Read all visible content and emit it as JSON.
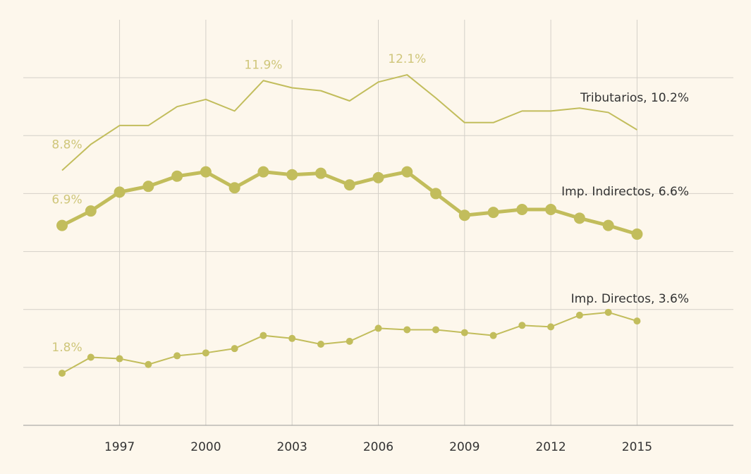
{
  "chart_data": {
    "type": "line",
    "x": [
      1995,
      1996,
      1997,
      1998,
      1999,
      2000,
      2001,
      2002,
      2003,
      2004,
      2005,
      2006,
      2007,
      2008,
      2009,
      2010,
      2011,
      2012,
      2013,
      2014,
      2015
    ],
    "series": [
      {
        "name": "Tributarios, 10.2%",
        "color": "#c2bd5c",
        "values": [
          8.8,
          9.7,
          10.35,
          10.35,
          11.0,
          11.25,
          10.85,
          11.9,
          11.65,
          11.55,
          11.2,
          11.85,
          12.1,
          11.3,
          10.45,
          10.45,
          10.85,
          10.85,
          10.95,
          10.8,
          10.2
        ],
        "value_labels": [
          "8.8%",
          null,
          null,
          null,
          null,
          null,
          null,
          "11.9%",
          null,
          null,
          null,
          null,
          "12.1%",
          null,
          null,
          null,
          null,
          null,
          null,
          null,
          null
        ]
      },
      {
        "name": "Imp. Indirectos, 6.6%",
        "color": "#c2bd5c",
        "values": [
          6.9,
          7.4,
          8.05,
          8.25,
          8.6,
          8.75,
          8.2,
          8.75,
          8.65,
          8.7,
          8.3,
          8.55,
          8.75,
          8.0,
          7.25,
          7.35,
          7.45,
          7.45,
          7.15,
          6.9,
          6.6
        ],
        "value_labels": [
          "6.9%",
          null,
          null,
          null,
          null,
          null,
          null,
          null,
          null,
          null,
          null,
          null,
          null,
          null,
          null,
          null,
          null,
          null,
          null,
          null,
          null
        ]
      },
      {
        "name": "Imp. Directos, 3.6%",
        "color": "#c2bd5c",
        "values": [
          1.8,
          2.35,
          2.3,
          2.1,
          2.4,
          2.5,
          2.65,
          3.1,
          3.0,
          2.8,
          2.9,
          3.35,
          3.3,
          3.3,
          3.2,
          3.1,
          3.45,
          3.4,
          3.8,
          3.9,
          3.6
        ],
        "value_labels": [
          "1.8%",
          null,
          null,
          null,
          null,
          null,
          null,
          null,
          null,
          null,
          null,
          null,
          null,
          null,
          null,
          null,
          null,
          null,
          null,
          null,
          null
        ]
      }
    ],
    "xlim": [
      1993.65,
      2018.35
    ],
    "xticks": [
      1997,
      2000,
      2003,
      2006,
      2009,
      2012,
      2015
    ],
    "ylim": [
      0,
      14
    ],
    "yticks": [
      0,
      2,
      4,
      6,
      8,
      10,
      12
    ],
    "grid": true
  }
}
